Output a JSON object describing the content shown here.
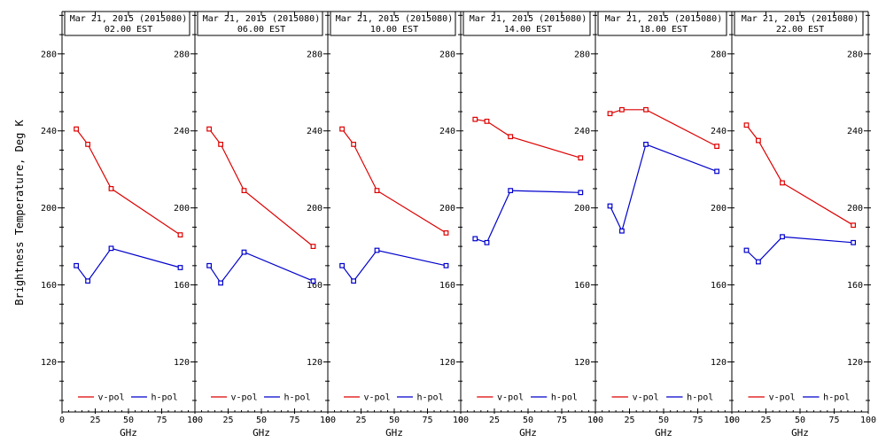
{
  "figure": {
    "background": "#ffffff",
    "axis_color": "#000000"
  },
  "chart_data": {
    "type": "line",
    "title": "Mar 21, 2015 (2015080)",
    "xlabel": "GHz",
    "ylabel": "Brightness Temperature, Deg K",
    "x": [
      10.7,
      19.4,
      37,
      89
    ],
    "xlim": [
      0,
      100
    ],
    "ylim": [
      94,
      302
    ],
    "xticks": [
      0,
      25,
      50,
      75,
      100
    ],
    "yticks": [
      120,
      160,
      200,
      240,
      280
    ],
    "x_minor_step": 5,
    "y_minor_step": 10,
    "grid": "off",
    "legend": [
      "v-pol",
      "h-pol"
    ],
    "legend_position": "bottom-inside-each-panel",
    "colors": {
      "v-pol": "#dd0000",
      "h-pol": "#0000cc"
    },
    "panels": [
      {
        "title": "Mar 21, 2015 (2015080)",
        "subtitle": "02.00 EST",
        "series": [
          {
            "name": "v-pol",
            "values": [
              241,
              233,
              210,
              186
            ]
          },
          {
            "name": "h-pol",
            "values": [
              170,
              162,
              179,
              169
            ]
          }
        ]
      },
      {
        "title": "Mar 21, 2015 (2015080)",
        "subtitle": "06.00 EST",
        "series": [
          {
            "name": "v-pol",
            "values": [
              241,
              233,
              209,
              180
            ]
          },
          {
            "name": "h-pol",
            "values": [
              170,
              161,
              177,
              162
            ]
          }
        ]
      },
      {
        "title": "Mar 21, 2015 (2015080)",
        "subtitle": "10.00 EST",
        "series": [
          {
            "name": "v-pol",
            "values": [
              241,
              233,
              209,
              187
            ]
          },
          {
            "name": "h-pol",
            "values": [
              170,
              162,
              178,
              170
            ]
          }
        ]
      },
      {
        "title": "Mar 21, 2015 (2015080)",
        "subtitle": "14.00 EST",
        "series": [
          {
            "name": "v-pol",
            "values": [
              246,
              245,
              237,
              226
            ]
          },
          {
            "name": "h-pol",
            "values": [
              184,
              182,
              209,
              208
            ]
          }
        ]
      },
      {
        "title": "Mar 21, 2015 (2015080)",
        "subtitle": "18.00 EST",
        "series": [
          {
            "name": "v-pol",
            "values": [
              249,
              251,
              251,
              232
            ]
          },
          {
            "name": "h-pol",
            "values": [
              201,
              188,
              233,
              219
            ]
          }
        ]
      },
      {
        "title": "Mar 21, 2015 (2015080)",
        "subtitle": "22.00 EST",
        "series": [
          {
            "name": "v-pol",
            "values": [
              243,
              235,
              213,
              191
            ]
          },
          {
            "name": "h-pol",
            "values": [
              178,
              172,
              185,
              182
            ]
          }
        ]
      }
    ]
  }
}
